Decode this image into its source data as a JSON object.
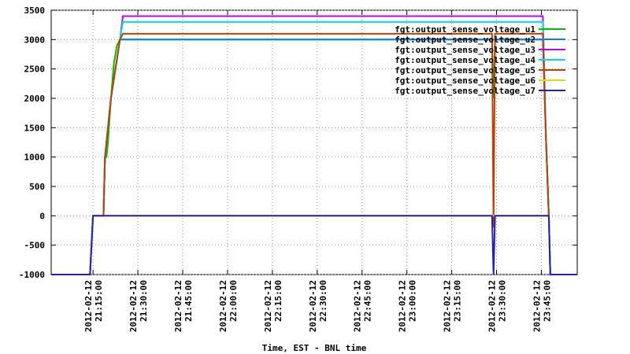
{
  "chart_data": {
    "type": "line",
    "x_label": "Time, EST - BNL time",
    "xlim": [
      "2012-02-12 21:01:00",
      "2012-02-12 23:57:00"
    ],
    "xticks": [
      "2012-02-12 21:15:00",
      "2012-02-12 21:30:00",
      "2012-02-12 21:45:00",
      "2012-02-12 22:00:00",
      "2012-02-12 22:15:00",
      "2012-02-12 22:30:00",
      "2012-02-12 22:45:00",
      "2012-02-12 23:00:00",
      "2012-02-12 23:15:00",
      "2012-02-12 23:30:00",
      "2012-02-12 23:45:00"
    ],
    "ylim": [
      -1000,
      3500
    ],
    "yticks": [
      -1000,
      -500,
      0,
      500,
      1000,
      1500,
      2000,
      2500,
      3000,
      3500
    ],
    "grid": true,
    "legend": "top-right",
    "series": [
      {
        "name": "fgt:output_sense_voltage_u1",
        "color": "#00c000",
        "x": [
          "2012-02-12 21:01:00",
          "2012-02-12 21:14:00",
          "2012-02-12 21:15:00",
          "2012-02-12 21:18:30",
          "2012-02-12 21:19:00",
          "2012-02-12 21:19:30",
          "2012-02-12 21:20:00",
          "2012-02-12 21:21:00",
          "2012-02-12 21:21:30",
          "2012-02-12 21:22:00",
          "2012-02-12 21:23:00",
          "2012-02-12 21:24:00",
          "2012-02-12 23:28:30",
          "2012-02-12 23:29:00",
          "2012-02-12 23:29:30",
          "2012-02-12 23:45:30",
          "2012-02-12 23:46:30",
          "2012-02-12 23:47:30",
          "2012-02-12 23:48:00",
          "2012-02-12 23:57:00"
        ],
        "values": [
          -1000,
          -1000,
          0,
          0,
          1000,
          1000,
          1250,
          2000,
          2300,
          2600,
          2900,
          3000,
          3000,
          2000,
          3000,
          3000,
          1400,
          0,
          -1000,
          -1000
        ]
      },
      {
        "name": "fgt:output_sense_voltage_u2",
        "color": "#0080ff",
        "x": [
          "2012-02-12 21:01:00",
          "2012-02-12 21:14:00",
          "2012-02-12 21:15:00",
          "2012-02-12 21:18:30",
          "2012-02-12 21:19:00",
          "2012-02-12 21:21:00",
          "2012-02-12 21:24:00",
          "2012-02-12 23:45:30",
          "2012-02-12 23:46:30",
          "2012-02-12 23:47:30",
          "2012-02-12 23:48:00",
          "2012-02-12 23:57:00"
        ],
        "values": [
          -1000,
          -1000,
          0,
          0,
          1000,
          2000,
          3000,
          3000,
          1400,
          0,
          -1000,
          -1000
        ]
      },
      {
        "name": "fgt:output_sense_voltage_u3",
        "color": "#c000ff",
        "x": [
          "2012-02-12 21:01:00",
          "2012-02-12 21:14:00",
          "2012-02-12 21:15:00",
          "2012-02-12 21:18:30",
          "2012-02-12 21:19:00",
          "2012-02-12 21:21:00",
          "2012-02-12 21:24:00",
          "2012-02-12 21:25:00",
          "2012-02-12 23:45:30",
          "2012-02-12 23:46:30",
          "2012-02-12 23:47:30",
          "2012-02-12 23:48:00",
          "2012-02-12 23:57:00"
        ],
        "values": [
          -1000,
          -1000,
          0,
          0,
          1000,
          2000,
          3000,
          3400,
          3400,
          1400,
          0,
          -1000,
          -1000
        ]
      },
      {
        "name": "fgt:output_sense_voltage_u4",
        "color": "#00e0e0",
        "x": [
          "2012-02-12 21:01:00",
          "2012-02-12 21:14:00",
          "2012-02-12 21:15:00",
          "2012-02-12 21:18:30",
          "2012-02-12 21:19:00",
          "2012-02-12 21:21:00",
          "2012-02-12 21:24:00",
          "2012-02-12 21:25:00",
          "2012-02-12 23:45:30",
          "2012-02-12 23:46:30",
          "2012-02-12 23:47:30",
          "2012-02-12 23:48:00",
          "2012-02-12 23:57:00"
        ],
        "values": [
          -1000,
          -1000,
          0,
          0,
          1000,
          2000,
          3000,
          3300,
          3300,
          1400,
          0,
          -1000,
          -1000
        ]
      },
      {
        "name": "fgt:output_sense_voltage_u5",
        "color": "#c04000",
        "x": [
          "2012-02-12 21:01:00",
          "2012-02-12 21:14:00",
          "2012-02-12 21:15:00",
          "2012-02-12 21:18:30",
          "2012-02-12 21:19:00",
          "2012-02-12 21:21:00",
          "2012-02-12 21:24:00",
          "2012-02-12 21:25:00",
          "2012-02-12 23:28:30",
          "2012-02-12 23:29:00",
          "2012-02-12 23:29:30",
          "2012-02-12 23:45:30",
          "2012-02-12 23:46:30",
          "2012-02-12 23:47:30",
          "2012-02-12 23:48:00",
          "2012-02-12 23:57:00"
        ],
        "values": [
          -1000,
          -1000,
          0,
          0,
          1000,
          2000,
          3000,
          3100,
          3100,
          -200,
          3100,
          3100,
          1400,
          0,
          -1000,
          -1000
        ]
      },
      {
        "name": "fgt:output_sense_voltage_u6",
        "color": "#e0e000",
        "x": [
          "2012-02-12 21:01:00",
          "2012-02-12 21:14:00",
          "2012-02-12 21:15:00",
          "2012-02-12 23:47:30",
          "2012-02-12 23:48:00",
          "2012-02-12 23:57:00"
        ],
        "values": [
          -1000,
          -1000,
          0,
          0,
          -1000,
          -1000
        ]
      },
      {
        "name": "fgt:output_sense_voltage_u7",
        "color": "#2020c0",
        "x": [
          "2012-02-12 21:01:00",
          "2012-02-12 21:14:00",
          "2012-02-12 21:15:00",
          "2012-02-12 23:28:30",
          "2012-02-12 23:29:00",
          "2012-02-12 23:29:30",
          "2012-02-12 23:47:30",
          "2012-02-12 23:48:00",
          "2012-02-12 23:57:00"
        ],
        "values": [
          -1000,
          -1000,
          0,
          0,
          -1000,
          0,
          0,
          -1000,
          -1000
        ]
      }
    ]
  }
}
